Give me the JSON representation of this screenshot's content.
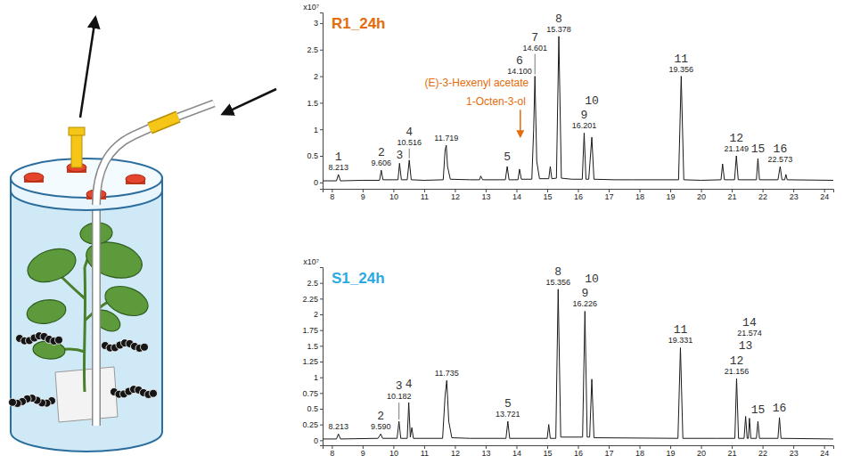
{
  "chart_data": [
    {
      "type": "line",
      "title": "R1_24h",
      "ylabel": "x10⁷",
      "color": "#1a1a1a",
      "xlim": [
        7.7,
        24.3
      ],
      "ylim": [
        -0.12,
        3.2
      ],
      "xticks": [
        8,
        9,
        10,
        11,
        12,
        13,
        14,
        15,
        16,
        17,
        18,
        19,
        20,
        21,
        22,
        23,
        24
      ],
      "yticks": [
        0,
        0.5,
        1,
        1.5,
        2,
        2.5,
        3
      ],
      "x": [
        7.7,
        8.15,
        8.213,
        8.28,
        9.0,
        9.55,
        9.606,
        9.66,
        10.15,
        10.2,
        10.26,
        10.45,
        10.516,
        10.58,
        11.0,
        11.62,
        11.68,
        11.719,
        11.76,
        11.85,
        12.5,
        12.8,
        12.84,
        12.9,
        13.64,
        13.7,
        13.76,
        14.05,
        14.1,
        14.16,
        14.5,
        14.56,
        14.601,
        14.66,
        14.75,
        15.05,
        15.1,
        15.15,
        15.3,
        15.378,
        15.46,
        15.8,
        16.14,
        16.201,
        16.26,
        16.35,
        16.45,
        16.52,
        17.2,
        17.8,
        19.27,
        19.356,
        19.44,
        20.0,
        20.65,
        20.7,
        20.76,
        21.09,
        21.149,
        21.21,
        21.8,
        21.85,
        21.9,
        22.5,
        22.573,
        22.63,
        22.72,
        22.76,
        22.8,
        24.3
      ],
      "values": [
        0.03,
        0.03,
        0.15,
        0.03,
        0.04,
        0.04,
        0.23,
        0.05,
        0.05,
        0.36,
        0.05,
        0.05,
        0.42,
        0.05,
        0.04,
        0.05,
        0.6,
        0.7,
        0.3,
        0.06,
        0.05,
        0.05,
        0.12,
        0.05,
        0.05,
        0.3,
        0.05,
        0.05,
        0.25,
        0.06,
        0.06,
        1.0,
        2.0,
        0.4,
        0.07,
        0.07,
        0.3,
        0.07,
        0.08,
        2.75,
        0.08,
        0.06,
        0.06,
        0.93,
        0.06,
        0.06,
        0.85,
        0.06,
        0.05,
        0.05,
        0.05,
        2.0,
        0.05,
        0.04,
        0.05,
        0.35,
        0.05,
        0.05,
        0.5,
        0.05,
        0.05,
        0.45,
        0.05,
        0.05,
        0.3,
        0.05,
        0.05,
        0.15,
        0.05,
        0.04
      ],
      "peak_labels": [
        {
          "x": 8.213,
          "y": 0.15,
          "label": "1",
          "rt": "8.213"
        },
        {
          "x": 9.606,
          "y": 0.23,
          "label": "2",
          "rt": "9.606"
        },
        {
          "x": 10.2,
          "y": 0.36,
          "label": "3"
        },
        {
          "x": 10.516,
          "y": 0.42,
          "label": "4",
          "rt": "10.516"
        },
        {
          "x": 11.719,
          "y": 0.7,
          "rt": "11.719"
        },
        {
          "x": 13.7,
          "y": 0.3,
          "label": "5"
        },
        {
          "x": 14.1,
          "y": 0.25,
          "label": "6",
          "rt": "14.100"
        },
        {
          "x": 14.601,
          "y": 2.0,
          "label": "7",
          "rt": "14.601"
        },
        {
          "x": 15.378,
          "y": 2.75,
          "label": "8",
          "rt": "15.378"
        },
        {
          "x": 16.201,
          "y": 0.93,
          "label": "9",
          "rt": "16.201"
        },
        {
          "x": 16.45,
          "y": 0.85,
          "label": "10"
        },
        {
          "x": 19.356,
          "y": 2.0,
          "label": "11",
          "rt": "19.356"
        },
        {
          "x": 21.149,
          "y": 0.5,
          "label": "12",
          "rt": "21.149"
        },
        {
          "x": 21.85,
          "y": 0.45,
          "label": "15"
        },
        {
          "x": 22.573,
          "y": 0.3,
          "label": "16",
          "rt": "22.573"
        }
      ],
      "annotations": [
        {
          "text": "(E)-3-Hexenyl acetate",
          "x": 14.4,
          "y": 1.8
        },
        {
          "text": "1-Octen-3-ol",
          "x": 14.3,
          "y": 1.45
        }
      ]
    },
    {
      "type": "line",
      "title": "S1_24h",
      "ylabel": "x10⁷",
      "color": "#1a1a1a",
      "xlim": [
        7.7,
        24.3
      ],
      "ylim": [
        -0.08,
        2.75
      ],
      "xticks": [
        8,
        9,
        10,
        11,
        12,
        13,
        14,
        15,
        16,
        17,
        18,
        19,
        20,
        21,
        22,
        23,
        24
      ],
      "yticks": [
        0,
        0.25,
        0.5,
        0.75,
        1,
        1.25,
        1.5,
        1.75,
        2,
        2.25,
        2.5
      ],
      "x": [
        7.7,
        8.15,
        8.213,
        8.28,
        9.5,
        9.59,
        9.65,
        10.12,
        10.182,
        10.24,
        10.45,
        10.5,
        10.55,
        10.6,
        10.65,
        11.6,
        11.68,
        11.735,
        11.8,
        11.9,
        12.5,
        13.66,
        13.721,
        13.78,
        15.0,
        15.05,
        15.1,
        15.28,
        15.356,
        15.44,
        16.15,
        16.226,
        16.3,
        16.38,
        16.45,
        16.52,
        19.25,
        19.331,
        19.41,
        20.5,
        21.1,
        21.156,
        21.22,
        21.4,
        21.45,
        21.5,
        21.54,
        21.574,
        21.62,
        21.8,
        21.85,
        21.9,
        22.5,
        22.55,
        22.6,
        24.3
      ],
      "values": [
        0.02,
        0.02,
        0.1,
        0.02,
        0.03,
        0.1,
        0.03,
        0.03,
        0.3,
        0.03,
        0.03,
        0.6,
        0.05,
        0.2,
        0.03,
        0.03,
        0.7,
        0.95,
        0.3,
        0.04,
        0.03,
        0.03,
        0.3,
        0.03,
        0.03,
        0.25,
        0.03,
        0.03,
        2.4,
        0.05,
        0.05,
        2.05,
        0.05,
        0.05,
        0.97,
        0.04,
        0.03,
        1.47,
        0.03,
        0.03,
        0.03,
        0.98,
        0.03,
        0.03,
        0.38,
        0.03,
        0.03,
        0.35,
        0.03,
        0.03,
        0.3,
        0.03,
        0.03,
        0.36,
        0.03,
        0.02
      ],
      "peak_labels": [
        {
          "x": 8.213,
          "y": 0.1,
          "rt": "8.213"
        },
        {
          "x": 9.59,
          "y": 0.1,
          "label": "2",
          "rt": "9.590"
        },
        {
          "x": 10.182,
          "y": 0.3,
          "label": "3",
          "rt": "10.182"
        },
        {
          "x": 10.5,
          "y": 0.6,
          "label": "4"
        },
        {
          "x": 11.735,
          "y": 0.95,
          "rt": "11.735"
        },
        {
          "x": 13.721,
          "y": 0.3,
          "label": "5",
          "rt": "13.721"
        },
        {
          "x": 15.356,
          "y": 2.4,
          "label": "8",
          "rt": "15.356"
        },
        {
          "x": 16.226,
          "y": 2.05,
          "label": "9",
          "rt": "16.226"
        },
        {
          "x": 16.45,
          "y": 0.97,
          "label": "10"
        },
        {
          "x": 19.331,
          "y": 1.47,
          "label": "11",
          "rt": "19.331"
        },
        {
          "x": 21.156,
          "y": 0.98,
          "label": "12",
          "rt": "21.156"
        },
        {
          "x": 21.45,
          "y": 0.38,
          "label": "13"
        },
        {
          "x": 21.574,
          "y": 0.35,
          "label": "14",
          "rt": "21.574"
        },
        {
          "x": 21.85,
          "y": 0.3,
          "label": "15"
        },
        {
          "x": 22.55,
          "y": 0.36,
          "label": "16"
        }
      ]
    }
  ]
}
